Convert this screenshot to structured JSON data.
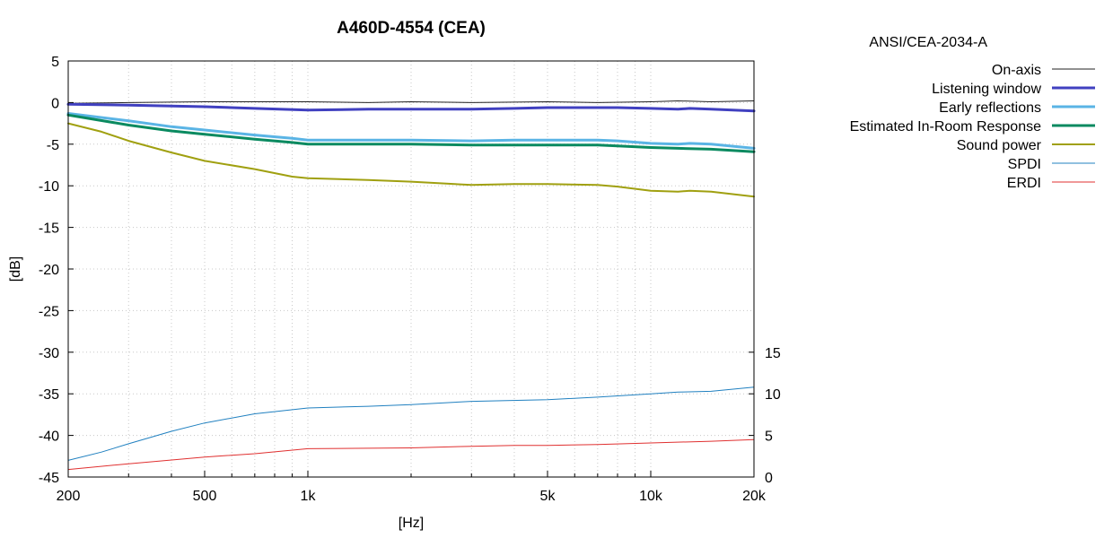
{
  "chart_data": {
    "type": "line",
    "title": "A460D-4554 (CEA)",
    "xlabel": "[Hz]",
    "ylabel": "[dB]",
    "x_scale": "log",
    "xlim": [
      200,
      20000
    ],
    "ylim": [
      -45,
      5
    ],
    "y2lim": [
      0,
      50
    ],
    "x_ticks": [
      {
        "value": 200,
        "label": "200"
      },
      {
        "value": 500,
        "label": "500"
      },
      {
        "value": 1000,
        "label": "1k"
      },
      {
        "value": 5000,
        "label": "5k"
      },
      {
        "value": 10000,
        "label": "10k"
      },
      {
        "value": 20000,
        "label": "20k"
      }
    ],
    "y_ticks": [
      5,
      0,
      -5,
      -10,
      -15,
      -20,
      -25,
      -30,
      -35,
      -40,
      -45
    ],
    "y2_ticks": [
      15,
      10,
      5,
      0
    ],
    "grid": true,
    "legend_title": "ANSI/CEA-2034-A",
    "legend_position": "outside-right",
    "series": [
      {
        "name": "On-axis",
        "color": "#222222",
        "width": 1,
        "axis": "left",
        "x": [
          200,
          300,
          500,
          700,
          1000,
          1500,
          2000,
          3000,
          5000,
          7000,
          10000,
          12000,
          15000,
          20000
        ],
        "y": [
          -0.1,
          0.0,
          0.1,
          0.1,
          0.1,
          0.0,
          0.1,
          0.0,
          0.1,
          0.0,
          0.1,
          0.2,
          0.1,
          0.2
        ]
      },
      {
        "name": "Listening window",
        "color": "#4040c0",
        "width": 3,
        "axis": "left",
        "x": [
          200,
          300,
          500,
          700,
          1000,
          1500,
          2000,
          3000,
          4000,
          5000,
          7000,
          8000,
          10000,
          12000,
          13000,
          15000,
          20000
        ],
        "y": [
          -0.2,
          -0.3,
          -0.5,
          -0.7,
          -0.9,
          -0.8,
          -0.8,
          -0.8,
          -0.7,
          -0.6,
          -0.6,
          -0.6,
          -0.7,
          -0.8,
          -0.7,
          -0.8,
          -1.0
        ]
      },
      {
        "name": "Early reflections",
        "color": "#5ab4e5",
        "width": 3,
        "axis": "left",
        "x": [
          200,
          300,
          400,
          500,
          700,
          900,
          1000,
          1500,
          2000,
          3000,
          4000,
          5000,
          7000,
          8000,
          10000,
          12000,
          13000,
          15000,
          20000
        ],
        "y": [
          -1.3,
          -2.2,
          -2.9,
          -3.3,
          -3.9,
          -4.3,
          -4.5,
          -4.5,
          -4.5,
          -4.6,
          -4.5,
          -4.5,
          -4.5,
          -4.6,
          -4.9,
          -5.0,
          -4.9,
          -5.0,
          -5.5
        ]
      },
      {
        "name": "Estimated In-Room Response",
        "color": "#0a8a60",
        "width": 3,
        "axis": "left",
        "x": [
          200,
          300,
          400,
          500,
          700,
          900,
          1000,
          1500,
          2000,
          3000,
          4000,
          5000,
          7000,
          8000,
          10000,
          12000,
          15000,
          20000
        ],
        "y": [
          -1.5,
          -2.7,
          -3.4,
          -3.8,
          -4.4,
          -4.8,
          -5.0,
          -5.0,
          -5.0,
          -5.1,
          -5.1,
          -5.1,
          -5.1,
          -5.2,
          -5.4,
          -5.5,
          -5.6,
          -5.9
        ]
      },
      {
        "name": "Sound power",
        "color": "#a0a010",
        "width": 2,
        "axis": "left",
        "x": [
          200,
          250,
          300,
          400,
          500,
          700,
          900,
          1000,
          1500,
          2000,
          3000,
          4000,
          5000,
          7000,
          8000,
          10000,
          12000,
          13000,
          15000,
          20000
        ],
        "y": [
          -2.5,
          -3.5,
          -4.6,
          -6.0,
          -7.0,
          -8.0,
          -8.9,
          -9.1,
          -9.3,
          -9.5,
          -9.9,
          -9.8,
          -9.8,
          -9.9,
          -10.1,
          -10.6,
          -10.7,
          -10.6,
          -10.7,
          -11.3
        ]
      },
      {
        "name": "SPDI",
        "color": "#2080c0",
        "width": 1,
        "axis": "right",
        "x": [
          200,
          250,
          300,
          400,
          500,
          700,
          1000,
          1500,
          2000,
          3000,
          5000,
          7000,
          10000,
          12000,
          15000,
          20000
        ],
        "y": [
          2.0,
          3.0,
          4.0,
          5.5,
          6.5,
          7.6,
          8.3,
          8.5,
          8.7,
          9.1,
          9.3,
          9.6,
          10.0,
          10.2,
          10.3,
          10.8
        ]
      },
      {
        "name": "ERDI",
        "color": "#e03030",
        "width": 1,
        "axis": "right",
        "x": [
          200,
          300,
          500,
          700,
          1000,
          2000,
          3000,
          4000,
          5000,
          7000,
          10000,
          15000,
          20000
        ],
        "y": [
          0.9,
          1.6,
          2.4,
          2.8,
          3.4,
          3.5,
          3.7,
          3.8,
          3.8,
          3.9,
          4.1,
          4.3,
          4.5
        ]
      }
    ]
  }
}
